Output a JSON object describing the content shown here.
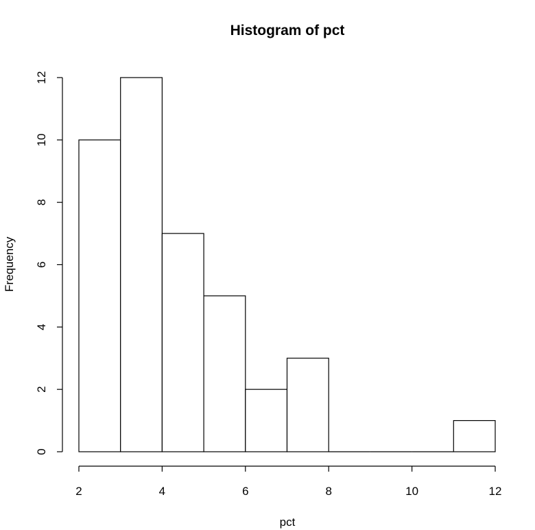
{
  "chart_data": {
    "type": "bar",
    "subtype": "histogram",
    "title": "Histogram of pct",
    "xlabel": "pct",
    "ylabel": "Frequency",
    "bins": [
      {
        "from": 2,
        "to": 3,
        "count": 10
      },
      {
        "from": 3,
        "to": 4,
        "count": 12
      },
      {
        "from": 4,
        "to": 5,
        "count": 7
      },
      {
        "from": 5,
        "to": 6,
        "count": 5
      },
      {
        "from": 6,
        "to": 7,
        "count": 2
      },
      {
        "from": 7,
        "to": 8,
        "count": 3
      },
      {
        "from": 8,
        "to": 9,
        "count": 0
      },
      {
        "from": 9,
        "to": 10,
        "count": 0
      },
      {
        "from": 10,
        "to": 11,
        "count": 0
      },
      {
        "from": 11,
        "to": 12,
        "count": 1
      }
    ],
    "xlim": [
      2,
      12
    ],
    "ylim": [
      0,
      12
    ],
    "x_ticks": [
      "2",
      "4",
      "6",
      "8",
      "10",
      "12"
    ],
    "y_ticks": [
      "0",
      "2",
      "4",
      "6",
      "8",
      "10",
      "12"
    ],
    "grid": false,
    "bar_color": "#ffffff",
    "edge_color": "#000000"
  }
}
